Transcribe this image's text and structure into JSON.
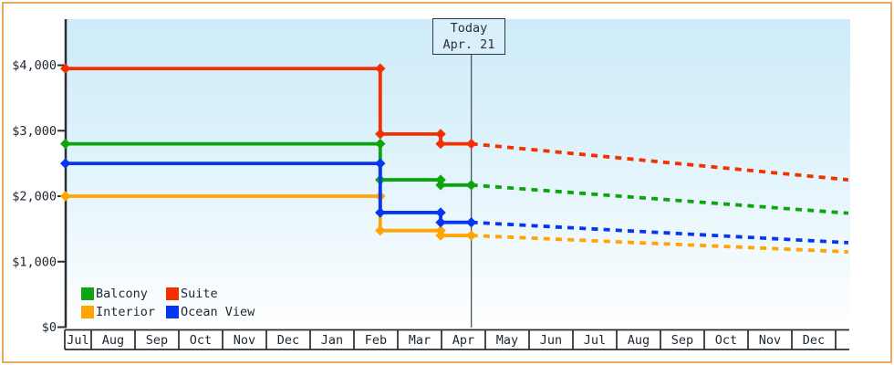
{
  "frame": {
    "border_color": "#e9a85c",
    "background": "#ffffff"
  },
  "colors": {
    "axis": "#2d2d2d",
    "text": "#1c2630",
    "today_line": "#4c565f",
    "today_box_fill": "#d9effa",
    "today_box_border": "#2b3845",
    "plot_gradient_top": "#cdebf9",
    "plot_gradient_bottom": "#ffffff"
  },
  "today_box": {
    "line1": "Today",
    "line2": "Apr. 21"
  },
  "y_axis": {
    "labels": [
      "$4,000",
      "$3,000",
      "$2,000",
      "$1,000",
      "$0"
    ],
    "values": [
      4000,
      3000,
      2000,
      1000,
      0
    ]
  },
  "x_axis": {
    "months": [
      "Jul",
      "Aug",
      "Sep",
      "Oct",
      "Nov",
      "Dec",
      "Jan",
      "Feb",
      "Mar",
      "Apr",
      "May",
      "Jun",
      "Jul",
      "Aug",
      "Sep",
      "Oct",
      "Nov",
      "Dec",
      ""
    ]
  },
  "legend": {
    "items": [
      {
        "label": "Balcony",
        "color": "#0da40d"
      },
      {
        "label": "Suite",
        "color": "#f23000"
      },
      {
        "label": "Interior",
        "color": "#ffa400"
      },
      {
        "label": "Ocean View",
        "color": "#0536f0"
      }
    ]
  },
  "chart_data": {
    "type": "line",
    "title": "",
    "x_unit": "month index (0 = first Jul tick, axis spans Jul through following Dec)",
    "xlim": [
      0.41,
      18.29
    ],
    "ylim": [
      0,
      4000
    ],
    "y_tick_step": 1000,
    "grid": false,
    "legend_position": "bottom-left inside plot",
    "today": {
      "x": 9.68,
      "label": "Apr. 21"
    },
    "series": [
      {
        "name": "Suite",
        "color": "#f23000",
        "solid_points": [
          [
            0.41,
            3950
          ],
          [
            7.6,
            3950
          ],
          [
            7.6,
            2950
          ],
          [
            8.98,
            2950
          ],
          [
            8.98,
            2800
          ],
          [
            9.68,
            2800
          ]
        ],
        "forecast_points": [
          [
            9.68,
            2800
          ],
          [
            18.29,
            2250
          ]
        ]
      },
      {
        "name": "Balcony",
        "color": "#0da40d",
        "solid_points": [
          [
            0.41,
            2800
          ],
          [
            7.6,
            2800
          ],
          [
            7.6,
            2250
          ],
          [
            8.98,
            2250
          ],
          [
            8.98,
            2170
          ],
          [
            9.68,
            2170
          ]
        ],
        "forecast_points": [
          [
            9.68,
            2170
          ],
          [
            18.29,
            1740
          ]
        ]
      },
      {
        "name": "Interior",
        "color": "#ffa400",
        "solid_points": [
          [
            0.41,
            2000
          ],
          [
            7.6,
            2000
          ],
          [
            7.6,
            1475
          ],
          [
            8.98,
            1475
          ],
          [
            8.98,
            1400
          ],
          [
            9.68,
            1400
          ]
        ],
        "forecast_points": [
          [
            9.68,
            1400
          ],
          [
            18.29,
            1150
          ]
        ]
      },
      {
        "name": "Ocean View",
        "color": "#0536f0",
        "solid_points": [
          [
            0.41,
            2500
          ],
          [
            7.6,
            2500
          ],
          [
            7.6,
            1750
          ],
          [
            8.98,
            1750
          ],
          [
            8.98,
            1600
          ],
          [
            9.68,
            1600
          ]
        ],
        "forecast_points": [
          [
            9.68,
            1600
          ],
          [
            18.29,
            1290
          ]
        ]
      }
    ]
  }
}
